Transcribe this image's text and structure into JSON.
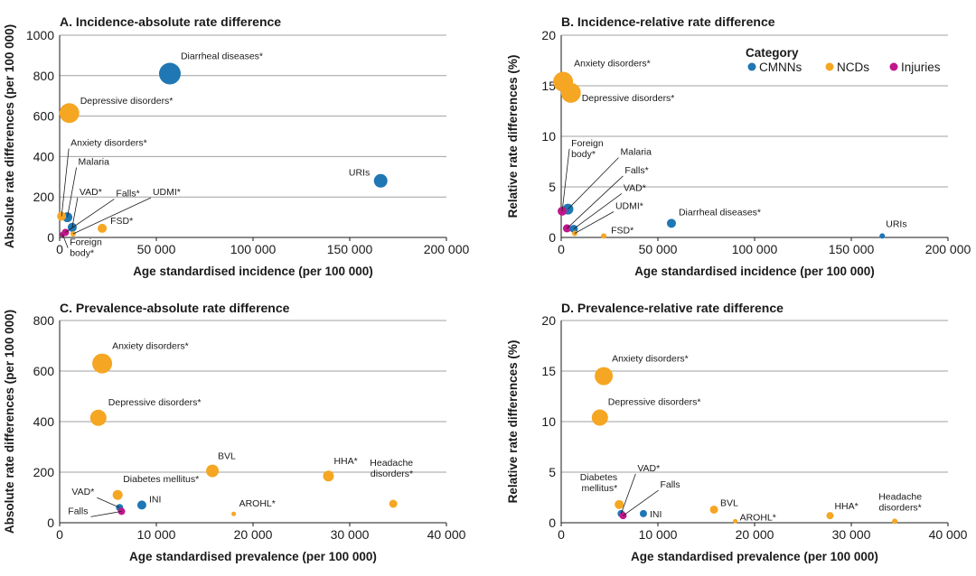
{
  "colors": {
    "CMNNs": "#1f77b4",
    "NCDs": "#f5a623",
    "Injuries": "#c0168c"
  },
  "legend": {
    "title": "Category",
    "items": [
      {
        "label": "CMNNs",
        "color": "#1f77b4"
      },
      {
        "label": "NCDs",
        "color": "#f5a623"
      },
      {
        "label": "Injuries",
        "color": "#c0168c"
      }
    ]
  },
  "chart_data": [
    {
      "type": "scatter",
      "title": "A. Incidence-absolute rate difference",
      "xlabel": "Age standardised incidence (per 100 000)",
      "ylabel": "Absolute rate differences (per 100 000)",
      "xlim": [
        0,
        200000
      ],
      "ylim": [
        0,
        1000
      ],
      "xticks": [
        0,
        50000,
        100000,
        150000,
        200000
      ],
      "xtick_labels": [
        "0",
        "50 000",
        "100 000",
        "150 000",
        "200 000"
      ],
      "yticks": [
        0,
        200,
        400,
        600,
        800,
        1000
      ],
      "ytick_labels": [
        "0",
        "200",
        "400",
        "600",
        "800",
        "1000"
      ],
      "grid": true,
      "points": [
        {
          "label": "Diarrheal diseases*",
          "category": "CMNNs",
          "x": 57000,
          "y": 810
        },
        {
          "label": "Depressive disorders*",
          "category": "NCDs",
          "x": 5000,
          "y": 615
        },
        {
          "label": "URIs",
          "category": "CMNNs",
          "x": 166000,
          "y": 280
        },
        {
          "label": "Anxiety disorders*",
          "category": "NCDs",
          "x": 1000,
          "y": 105
        },
        {
          "label": "Malaria",
          "category": "CMNNs",
          "x": 4000,
          "y": 100
        },
        {
          "label": "VAD*",
          "category": "CMNNs",
          "x": 6500,
          "y": 50
        },
        {
          "label": "Falls*",
          "category": "Injuries",
          "x": 3000,
          "y": 25
        },
        {
          "label": "UDMI*",
          "category": "NCDs",
          "x": 7000,
          "y": 18
        },
        {
          "label": "FSD*",
          "category": "NCDs",
          "x": 22000,
          "y": 45
        },
        {
          "label": "Foreign body*",
          "category": "Injuries",
          "x": 1500,
          "y": 15
        }
      ]
    },
    {
      "type": "scatter",
      "title": "B. Incidence-relative rate difference",
      "xlabel": "Age standardised incidence (per 100 000)",
      "ylabel": "Relative rate differences (%)",
      "xlim": [
        0,
        200000
      ],
      "ylim": [
        0,
        20
      ],
      "xticks": [
        0,
        50000,
        100000,
        150000,
        200000
      ],
      "xtick_labels": [
        "0",
        "50 000",
        "100 000",
        "150 000",
        "200 000"
      ],
      "yticks": [
        0,
        5,
        10,
        15,
        20
      ],
      "ytick_labels": [
        "0",
        "5",
        "10",
        "15",
        "20"
      ],
      "grid": true,
      "points": [
        {
          "label": "Anxiety disorders*",
          "category": "NCDs",
          "x": 1000,
          "y": 15.4
        },
        {
          "label": "Depressive disorders*",
          "category": "NCDs",
          "x": 5000,
          "y": 14.3
        },
        {
          "label": "Foreign body*",
          "category": "Injuries",
          "x": 500,
          "y": 2.6
        },
        {
          "label": "Malaria",
          "category": "CMNNs",
          "x": 3500,
          "y": 2.8
        },
        {
          "label": "Falls*",
          "category": "Injuries",
          "x": 3000,
          "y": 0.9
        },
        {
          "label": "VAD*",
          "category": "CMNNs",
          "x": 6500,
          "y": 0.85
        },
        {
          "label": "UDMI*",
          "category": "NCDs",
          "x": 7000,
          "y": 0.4
        },
        {
          "label": "FSD*",
          "category": "NCDs",
          "x": 22000,
          "y": 0.15
        },
        {
          "label": "Diarrheal diseases*",
          "category": "CMNNs",
          "x": 57000,
          "y": 1.4
        },
        {
          "label": "URIs",
          "category": "CMNNs",
          "x": 166000,
          "y": 0.15
        }
      ]
    },
    {
      "type": "scatter",
      "title": "C. Prevalence-absolute rate difference",
      "xlabel": "Age standardised prevalence (per 100 000)",
      "ylabel": "Absolute rate differences (per 100 000)",
      "xlim": [
        0,
        40000
      ],
      "ylim": [
        0,
        800
      ],
      "xticks": [
        0,
        10000,
        20000,
        30000,
        40000
      ],
      "xtick_labels": [
        "0",
        "10 000",
        "20 000",
        "30 000",
        "40 000"
      ],
      "yticks": [
        0,
        200,
        400,
        600,
        800
      ],
      "ytick_labels": [
        "0",
        "200",
        "400",
        "600",
        "800"
      ],
      "grid": true,
      "points": [
        {
          "label": "Anxiety disorders*",
          "category": "NCDs",
          "x": 4400,
          "y": 630
        },
        {
          "label": "Depressive disorders*",
          "category": "NCDs",
          "x": 4000,
          "y": 415
        },
        {
          "label": "BVL",
          "category": "NCDs",
          "x": 15800,
          "y": 205
        },
        {
          "label": "HHA*",
          "category": "NCDs",
          "x": 27800,
          "y": 185
        },
        {
          "label": "Diabetes mellitus*",
          "category": "NCDs",
          "x": 6000,
          "y": 110
        },
        {
          "label": "INI",
          "category": "CMNNs",
          "x": 8500,
          "y": 70
        },
        {
          "label": "VAD*",
          "category": "CMNNs",
          "x": 6200,
          "y": 60
        },
        {
          "label": "Falls",
          "category": "Injuries",
          "x": 6400,
          "y": 45
        },
        {
          "label": "AROHL*",
          "category": "NCDs",
          "x": 18000,
          "y": 35
        },
        {
          "label": "Headache disorders*",
          "category": "NCDs",
          "x": 34500,
          "y": 75
        }
      ]
    },
    {
      "type": "scatter",
      "title": "D. Prevalence-relative rate difference",
      "xlabel": "Age standardised prevalence (per 100 000)",
      "ylabel": "Relative rate differences (%)",
      "xlim": [
        0,
        40000
      ],
      "ylim": [
        0,
        20
      ],
      "xticks": [
        0,
        10000,
        20000,
        30000,
        40000
      ],
      "xtick_labels": [
        "0",
        "10 000",
        "20 000",
        "30 000",
        "40 000"
      ],
      "yticks": [
        0,
        5,
        10,
        15,
        20
      ],
      "ytick_labels": [
        "0",
        "5",
        "10",
        "15",
        "20"
      ],
      "grid": true,
      "points": [
        {
          "label": "Anxiety disorders*",
          "category": "NCDs",
          "x": 4400,
          "y": 14.5
        },
        {
          "label": "Depressive disorders*",
          "category": "NCDs",
          "x": 4000,
          "y": 10.4
        },
        {
          "label": "Diabetes mellitus*",
          "category": "NCDs",
          "x": 6000,
          "y": 1.8
        },
        {
          "label": "VAD*",
          "category": "CMNNs",
          "x": 6200,
          "y": 0.9
        },
        {
          "label": "Falls",
          "category": "Injuries",
          "x": 6400,
          "y": 0.7
        },
        {
          "label": "INI",
          "category": "CMNNs",
          "x": 8500,
          "y": 0.9
        },
        {
          "label": "BVL",
          "category": "NCDs",
          "x": 15800,
          "y": 1.3
        },
        {
          "label": "AROHL*",
          "category": "NCDs",
          "x": 18000,
          "y": 0.15
        },
        {
          "label": "HHA*",
          "category": "NCDs",
          "x": 27800,
          "y": 0.7
        },
        {
          "label": "Headache disorders*",
          "category": "NCDs",
          "x": 34500,
          "y": 0.15
        }
      ]
    }
  ]
}
